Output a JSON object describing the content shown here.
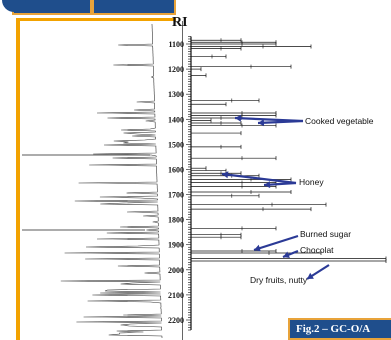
{
  "chart_data": {
    "type": "bar",
    "ylabel": "RI",
    "y_ticks": [
      1100,
      1200,
      1300,
      1400,
      1500,
      1600,
      1700,
      1800,
      1900,
      2000,
      2100,
      2200
    ],
    "y_range": [
      1070,
      2240
    ],
    "bars": [
      {
        "ri": 1085,
        "length": 50,
        "whisker": 1
      },
      {
        "ri": 1093,
        "length": 85,
        "whisker": 1
      },
      {
        "ri": 1100,
        "length": 85,
        "whisker": 1
      },
      {
        "ri": 1110,
        "length": 120,
        "whisker": 1
      },
      {
        "ri": 1118,
        "length": 50,
        "whisker": 1
      },
      {
        "ri": 1150,
        "length": 35,
        "whisker": 1
      },
      {
        "ri": 1190,
        "length": 100,
        "whisker": 1
      },
      {
        "ri": 1200,
        "length": 10,
        "whisker": 0
      },
      {
        "ri": 1225,
        "length": 15,
        "whisker": 0
      },
      {
        "ri": 1325,
        "length": 68,
        "whisker": 1
      },
      {
        "ri": 1340,
        "length": 35,
        "whisker": 0
      },
      {
        "ri": 1375,
        "length": 85,
        "whisker": 1
      },
      {
        "ri": 1385,
        "length": 85,
        "whisker": 1
      },
      {
        "ri": 1395,
        "length": 50,
        "whisker": 1
      },
      {
        "ri": 1405,
        "length": 20,
        "whisker": 0
      },
      {
        "ri": 1415,
        "length": 50,
        "whisker": 1
      },
      {
        "ri": 1425,
        "length": 85,
        "whisker": 1
      },
      {
        "ri": 1455,
        "length": 50,
        "whisker": 0
      },
      {
        "ri": 1510,
        "length": 50,
        "whisker": 1
      },
      {
        "ri": 1555,
        "length": 85,
        "whisker": 1
      },
      {
        "ri": 1595,
        "length": 15,
        "whisker": 0
      },
      {
        "ri": 1605,
        "length": 35,
        "whisker": 0
      },
      {
        "ri": 1615,
        "length": 50,
        "whisker": 1
      },
      {
        "ri": 1625,
        "length": 68,
        "whisker": 1
      },
      {
        "ri": 1640,
        "length": 100,
        "whisker": 1
      },
      {
        "ri": 1652,
        "length": 85,
        "whisker": 1
      },
      {
        "ri": 1668,
        "length": 85,
        "whisker": 1
      },
      {
        "ri": 1690,
        "length": 100,
        "whisker": 1
      },
      {
        "ri": 1705,
        "length": 68,
        "whisker": 1
      },
      {
        "ri": 1740,
        "length": 135,
        "whisker": 1
      },
      {
        "ri": 1758,
        "length": 120,
        "whisker": 1
      },
      {
        "ri": 1835,
        "length": 85,
        "whisker": 1
      },
      {
        "ri": 1860,
        "length": 50,
        "whisker": 1
      },
      {
        "ri": 1870,
        "length": 50,
        "whisker": 1
      },
      {
        "ri": 1925,
        "length": 85,
        "whisker": 1
      },
      {
        "ri": 1933,
        "length": 130,
        "whisker": 1
      },
      {
        "ri": 1955,
        "length": 195,
        "whisker": 0
      },
      {
        "ri": 1965,
        "length": 195,
        "whisker": 0
      }
    ],
    "annotations": [
      {
        "text": "Cooked vegetable",
        "ri": 1415
      },
      {
        "text": "Honey",
        "ri": 1660
      },
      {
        "text": "Burned sugar",
        "ri": 1870
      },
      {
        "text": "Chocolat",
        "ri": 1915
      },
      {
        "text": "Dry fruits, nutty",
        "ri": 2025
      }
    ],
    "figure_label": "Fig.2 – GC-O/A"
  }
}
